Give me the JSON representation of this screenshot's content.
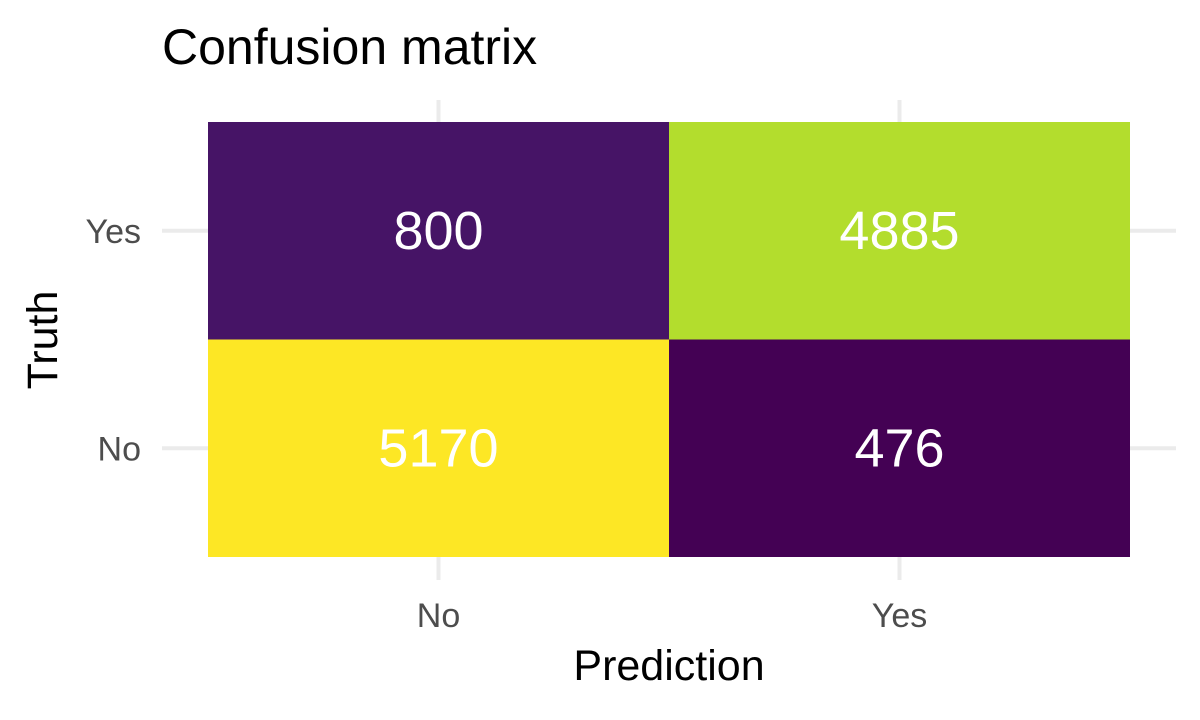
{
  "chart_data": {
    "type": "heatmap",
    "title": "Confusion matrix",
    "xlabel": "Prediction",
    "ylabel": "Truth",
    "x_categories": [
      "No",
      "Yes"
    ],
    "y_categories": [
      "No",
      "Yes"
    ],
    "cells": [
      {
        "x": "No",
        "y": "Yes",
        "value": 800
      },
      {
        "x": "Yes",
        "y": "Yes",
        "value": 4885
      },
      {
        "x": "No",
        "y": "No",
        "value": 5170
      },
      {
        "x": "Yes",
        "y": "No",
        "value": 476
      }
    ],
    "color_scale": "viridis",
    "grid": true,
    "legend": "none"
  },
  "colors": {
    "cell_label": "#ffffff",
    "grid": "#ebebeb",
    "tick_label": "#4d4d4d",
    "title": "#000000"
  }
}
